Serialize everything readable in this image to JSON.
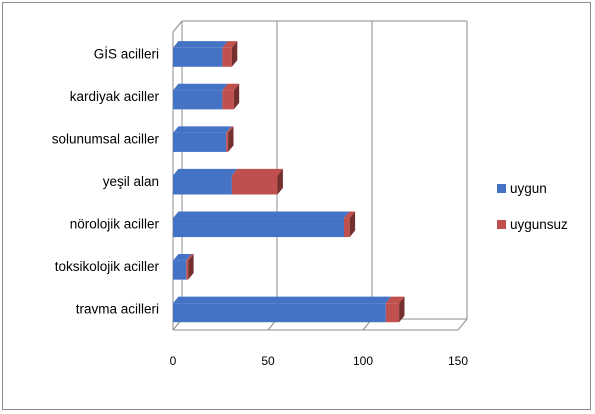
{
  "chart_data": {
    "type": "bar",
    "orientation": "horizontal",
    "stacked": true,
    "style": "3d",
    "categories": [
      "GİS acilleri",
      "kardiyak aciller",
      "solunumsal aciller",
      "yeşil alan",
      "nörolojik aciller",
      "toksikolojik aciller",
      "travma acilleri"
    ],
    "series": [
      {
        "name": "uygun",
        "color": "#4472c4",
        "values": [
          26,
          26,
          28,
          31,
          90,
          7,
          112
        ]
      },
      {
        "name": "uygunsuz",
        "color": "#c0504d",
        "values": [
          5,
          6,
          1,
          24,
          3,
          1,
          7
        ]
      }
    ],
    "x_ticks": [
      0,
      50,
      100,
      150
    ],
    "xlim": [
      0,
      150
    ],
    "grid": true,
    "legend_position": "right"
  }
}
